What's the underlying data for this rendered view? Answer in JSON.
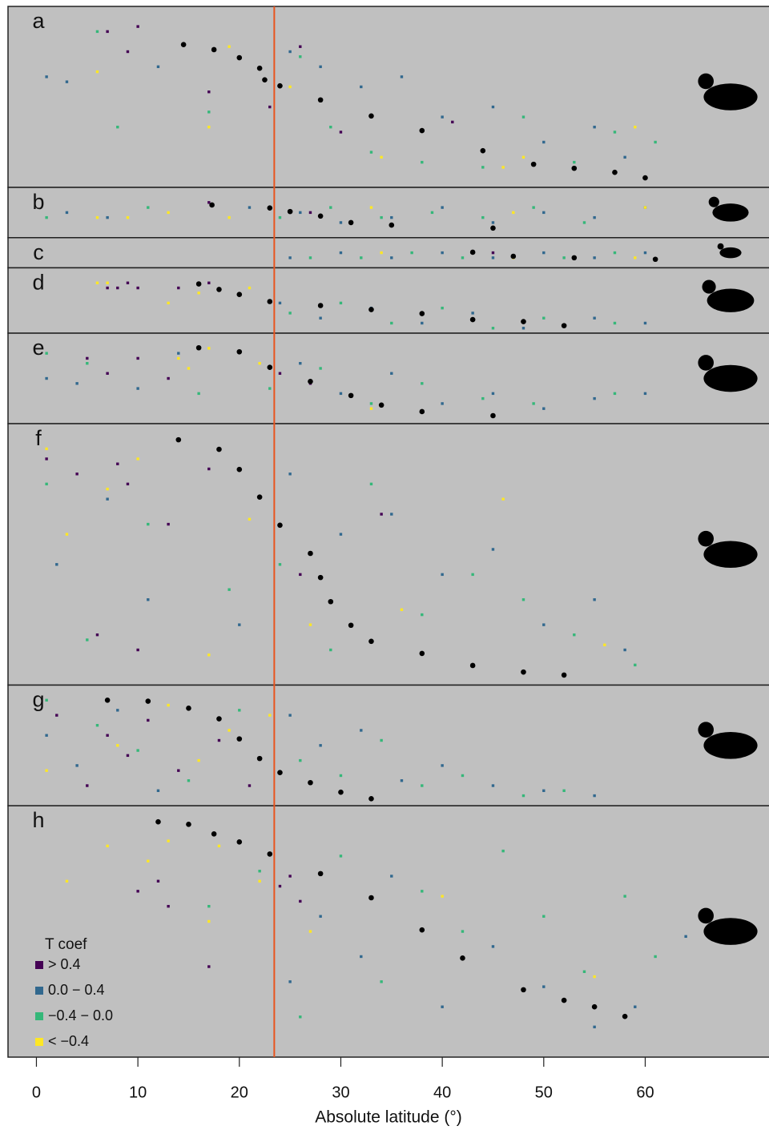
{
  "chart_data": {
    "type": "scatter",
    "x_label": "Absolute latitude (°)",
    "xlim": [
      -2.8,
      72.2
    ],
    "xticks": [
      0,
      10,
      20,
      30,
      40,
      50,
      60
    ],
    "vline": {
      "value": 23.44,
      "color": "#e8541e"
    },
    "background": "#c0c0c0",
    "curve_color": "#000000",
    "legend": {
      "title": "T coef",
      "corner": "bottom-left",
      "entries": [
        {
          "name": "> 0.4",
          "color": "#440154"
        },
        {
          "name": "0.0 − 0.4",
          "color": "#31688e"
        },
        {
          "name": "−0.4 − 0.0",
          "color": "#35b779"
        },
        {
          "name": "< −0.4",
          "color": "#fde725"
        }
      ]
    },
    "panels": [
      {
        "label": "a",
        "ylim": [
          36,
          0
        ],
        "curve": {
          "x": [
            14.5,
            17.5,
            20,
            22,
            22.5,
            24,
            28,
            33,
            38,
            44,
            49,
            53,
            57,
            60
          ],
          "y": [
            7.6,
            8.6,
            10.2,
            12.3,
            14.6,
            15.8,
            18.6,
            21.8,
            24.7,
            28.7,
            31.4,
            32.2,
            33,
            34.1
          ]
        },
        "dots": [
          {
            "x": [
              7,
              9,
              10,
              17,
              23,
              26,
              30,
              41
            ],
            "y": [
              5,
              9,
              4,
              17,
              20,
              8,
              25,
              23
            ]
          },
          {
            "x": [
              1,
              3,
              12,
              25,
              28,
              32,
              36,
              40,
              45,
              50,
              55,
              58
            ],
            "y": [
              14,
              15,
              12,
              9,
              12,
              16,
              14,
              22,
              20,
              27,
              24,
              30
            ]
          },
          {
            "x": [
              6,
              8,
              17,
              26,
              29,
              33,
              38,
              44,
              48,
              53,
              57,
              61
            ],
            "y": [
              5,
              24,
              21,
              10,
              24,
              29,
              31,
              32,
              22,
              31,
              25,
              27
            ]
          },
          {
            "x": [
              6,
              17,
              19,
              25,
              34,
              46,
              48,
              59
            ],
            "y": [
              13,
              24,
              8,
              16,
              30,
              32,
              30,
              24
            ]
          }
        ]
      },
      {
        "label": "b",
        "ylim": [
          10,
          0
        ],
        "curve": {
          "x": [
            17.3,
            23,
            25,
            28,
            31,
            35,
            45
          ],
          "y": [
            3.5,
            4.1,
            4.8,
            5.7,
            7,
            7.5,
            8.1
          ]
        },
        "dots": [
          {
            "x": [
              17,
              27
            ],
            "y": [
              3,
              5
            ]
          },
          {
            "x": [
              3,
              7,
              21,
              26,
              30,
              35,
              40,
              45,
              50,
              55,
              60
            ],
            "y": [
              5,
              6,
              4,
              5,
              7,
              6,
              4,
              7,
              5,
              6,
              4
            ]
          },
          {
            "x": [
              1,
              11,
              24,
              29,
              34,
              39,
              44,
              49,
              54
            ],
            "y": [
              6,
              4,
              6,
              4,
              6,
              5,
              6,
              4,
              7
            ]
          },
          {
            "x": [
              6,
              9,
              13,
              19,
              33,
              47,
              60
            ],
            "y": [
              6,
              6,
              5,
              6,
              4,
              5,
              4
            ]
          }
        ]
      },
      {
        "label": "c",
        "ylim": [
          6,
          0
        ],
        "curve": {
          "x": [
            43,
            47,
            53,
            61
          ],
          "y": [
            2.9,
            3.7,
            4,
            4.3
          ]
        },
        "dots": [
          {
            "x": [
              45
            ],
            "y": [
              3
            ]
          },
          {
            "x": [
              25,
              30,
              35,
              40,
              45,
              50,
              55,
              60
            ],
            "y": [
              4,
              3,
              4,
              3,
              4,
              3,
              4,
              3
            ]
          },
          {
            "x": [
              27,
              32,
              37,
              42,
              52,
              57
            ],
            "y": [
              4,
              4,
              3,
              4,
              4,
              3
            ]
          },
          {
            "x": [
              34,
              47,
              59
            ],
            "y": [
              3,
              4,
              4
            ]
          }
        ]
      },
      {
        "label": "d",
        "ylim": [
          13,
          0
        ],
        "curve": {
          "x": [
            16,
            18,
            20,
            23,
            28,
            33,
            38,
            43,
            48,
            52
          ],
          "y": [
            3.2,
            4.3,
            5.3,
            6.7,
            7.5,
            8.3,
            9.1,
            10.3,
            10.7,
            11.5
          ]
        },
        "dots": [
          {
            "x": [
              7,
              8,
              9,
              10,
              14,
              17
            ],
            "y": [
              4,
              4,
              3,
              4,
              4,
              3
            ]
          },
          {
            "x": [
              24,
              28,
              33,
              38,
              43,
              48,
              55,
              60
            ],
            "y": [
              7,
              10,
              8,
              11,
              9,
              12,
              10,
              11
            ]
          },
          {
            "x": [
              25,
              30,
              35,
              40,
              45,
              50,
              57
            ],
            "y": [
              9,
              7,
              11,
              8,
              12,
              10,
              11
            ]
          },
          {
            "x": [
              6,
              7,
              13,
              16,
              21
            ],
            "y": [
              3,
              3,
              7,
              5,
              4
            ]
          }
        ]
      },
      {
        "label": "e",
        "ylim": [
          18,
          0
        ],
        "curve": {
          "x": [
            16,
            20,
            23,
            27,
            31,
            34,
            38,
            45
          ],
          "y": [
            2.9,
            3.7,
            6.8,
            9.6,
            12.4,
            14.3,
            15.6,
            16.4
          ]
        },
        "dots": [
          {
            "x": [
              5,
              7,
              10,
              13,
              24,
              27
            ],
            "y": [
              5,
              8,
              5,
              9,
              8,
              10
            ]
          },
          {
            "x": [
              1,
              4,
              10,
              14,
              26,
              30,
              35,
              40,
              45,
              50,
              55,
              60
            ],
            "y": [
              9,
              10,
              11,
              4,
              6,
              12,
              8,
              14,
              12,
              15,
              13,
              12
            ]
          },
          {
            "x": [
              1,
              5,
              16,
              23,
              28,
              33,
              38,
              44,
              49,
              57
            ],
            "y": [
              4,
              6,
              12,
              11,
              7,
              14,
              10,
              13,
              14,
              12
            ]
          },
          {
            "x": [
              14,
              15,
              17,
              22,
              33
            ],
            "y": [
              5,
              7,
              3,
              6,
              15
            ]
          }
        ]
      },
      {
        "label": "f",
        "ylim": [
          52,
          0
        ],
        "curve": {
          "x": [
            14,
            18,
            20,
            22,
            24,
            27,
            28,
            29,
            31,
            33,
            38,
            43,
            48,
            52
          ],
          "y": [
            3.2,
            5.1,
            9.1,
            14.6,
            20.2,
            25.8,
            30.6,
            35.4,
            40.1,
            43.3,
            45.7,
            48.1,
            49.4,
            50
          ]
        },
        "dots": [
          {
            "x": [
              1,
              4,
              6,
              8,
              9,
              10,
              13,
              17,
              26,
              34
            ],
            "y": [
              7,
              10,
              42,
              8,
              12,
              45,
              20,
              9,
              30,
              18
            ]
          },
          {
            "x": [
              2,
              7,
              11,
              20,
              25,
              30,
              35,
              40,
              45,
              50,
              55,
              58
            ],
            "y": [
              28,
              15,
              35,
              40,
              10,
              22,
              18,
              30,
              25,
              40,
              35,
              45
            ]
          },
          {
            "x": [
              1,
              5,
              11,
              19,
              24,
              29,
              33,
              38,
              43,
              48,
              53,
              59
            ],
            "y": [
              12,
              43,
              20,
              33,
              28,
              45,
              12,
              38,
              30,
              35,
              42,
              48
            ]
          },
          {
            "x": [
              1,
              3,
              7,
              10,
              17,
              21,
              27,
              36,
              46,
              56
            ],
            "y": [
              5,
              22,
              13,
              7,
              46,
              19,
              40,
              37,
              15,
              44
            ]
          }
        ]
      },
      {
        "label": "g",
        "ylim": [
          24,
          0
        ],
        "curve": {
          "x": [
            7,
            11,
            15,
            18,
            20,
            22,
            24,
            27,
            30,
            33
          ],
          "y": [
            3,
            3.2,
            4.6,
            6.7,
            10.7,
            14.6,
            17.4,
            19.4,
            21.3,
            22.6
          ]
        },
        "dots": [
          {
            "x": [
              2,
              5,
              7,
              9,
              11,
              14,
              18,
              21
            ],
            "y": [
              6,
              20,
              10,
              14,
              7,
              17,
              11,
              20
            ]
          },
          {
            "x": [
              1,
              4,
              8,
              12,
              25,
              28,
              32,
              36,
              40,
              45,
              50,
              55
            ],
            "y": [
              10,
              16,
              5,
              21,
              6,
              12,
              9,
              19,
              16,
              20,
              21,
              22
            ]
          },
          {
            "x": [
              1,
              6,
              10,
              15,
              20,
              26,
              30,
              34,
              38,
              42,
              48,
              52
            ],
            "y": [
              3,
              8,
              13,
              19,
              5,
              15,
              18,
              11,
              20,
              18,
              22,
              21
            ]
          },
          {
            "x": [
              1,
              8,
              13,
              16,
              19,
              23
            ],
            "y": [
              17,
              12,
              4,
              15,
              9,
              6
            ]
          }
        ]
      },
      {
        "label": "h",
        "ylim": [
          50,
          0
        ],
        "curve": {
          "x": [
            12,
            15,
            17.5,
            20,
            23,
            28,
            33,
            38,
            42,
            48,
            52,
            55,
            58
          ],
          "y": [
            3.2,
            3.7,
            5.6,
            7.2,
            9.6,
            13.5,
            18.3,
            24.7,
            30.3,
            36.6,
            38.7,
            40,
            41.9
          ]
        },
        "dots": [
          {
            "x": [
              10,
              12,
              13,
              17,
              24,
              25,
              26
            ],
            "y": [
              17,
              15,
              20,
              32,
              16,
              14,
              19
            ]
          },
          {
            "x": [
              25,
              28,
              32,
              35,
              40,
              45,
              50,
              55,
              59,
              64
            ],
            "y": [
              35,
              22,
              30,
              14,
              40,
              28,
              36,
              44,
              40,
              26
            ]
          },
          {
            "x": [
              17,
              22,
              26,
              30,
              34,
              38,
              42,
              46,
              50,
              54,
              58,
              61
            ],
            "y": [
              20,
              13,
              42,
              10,
              35,
              17,
              25,
              9,
              22,
              33,
              18,
              30
            ]
          },
          {
            "x": [
              3,
              7,
              11,
              13,
              17,
              18,
              22,
              27,
              40,
              55
            ],
            "y": [
              15,
              8,
              11,
              7,
              23,
              8,
              15,
              25,
              18,
              34
            ]
          }
        ]
      }
    ]
  }
}
